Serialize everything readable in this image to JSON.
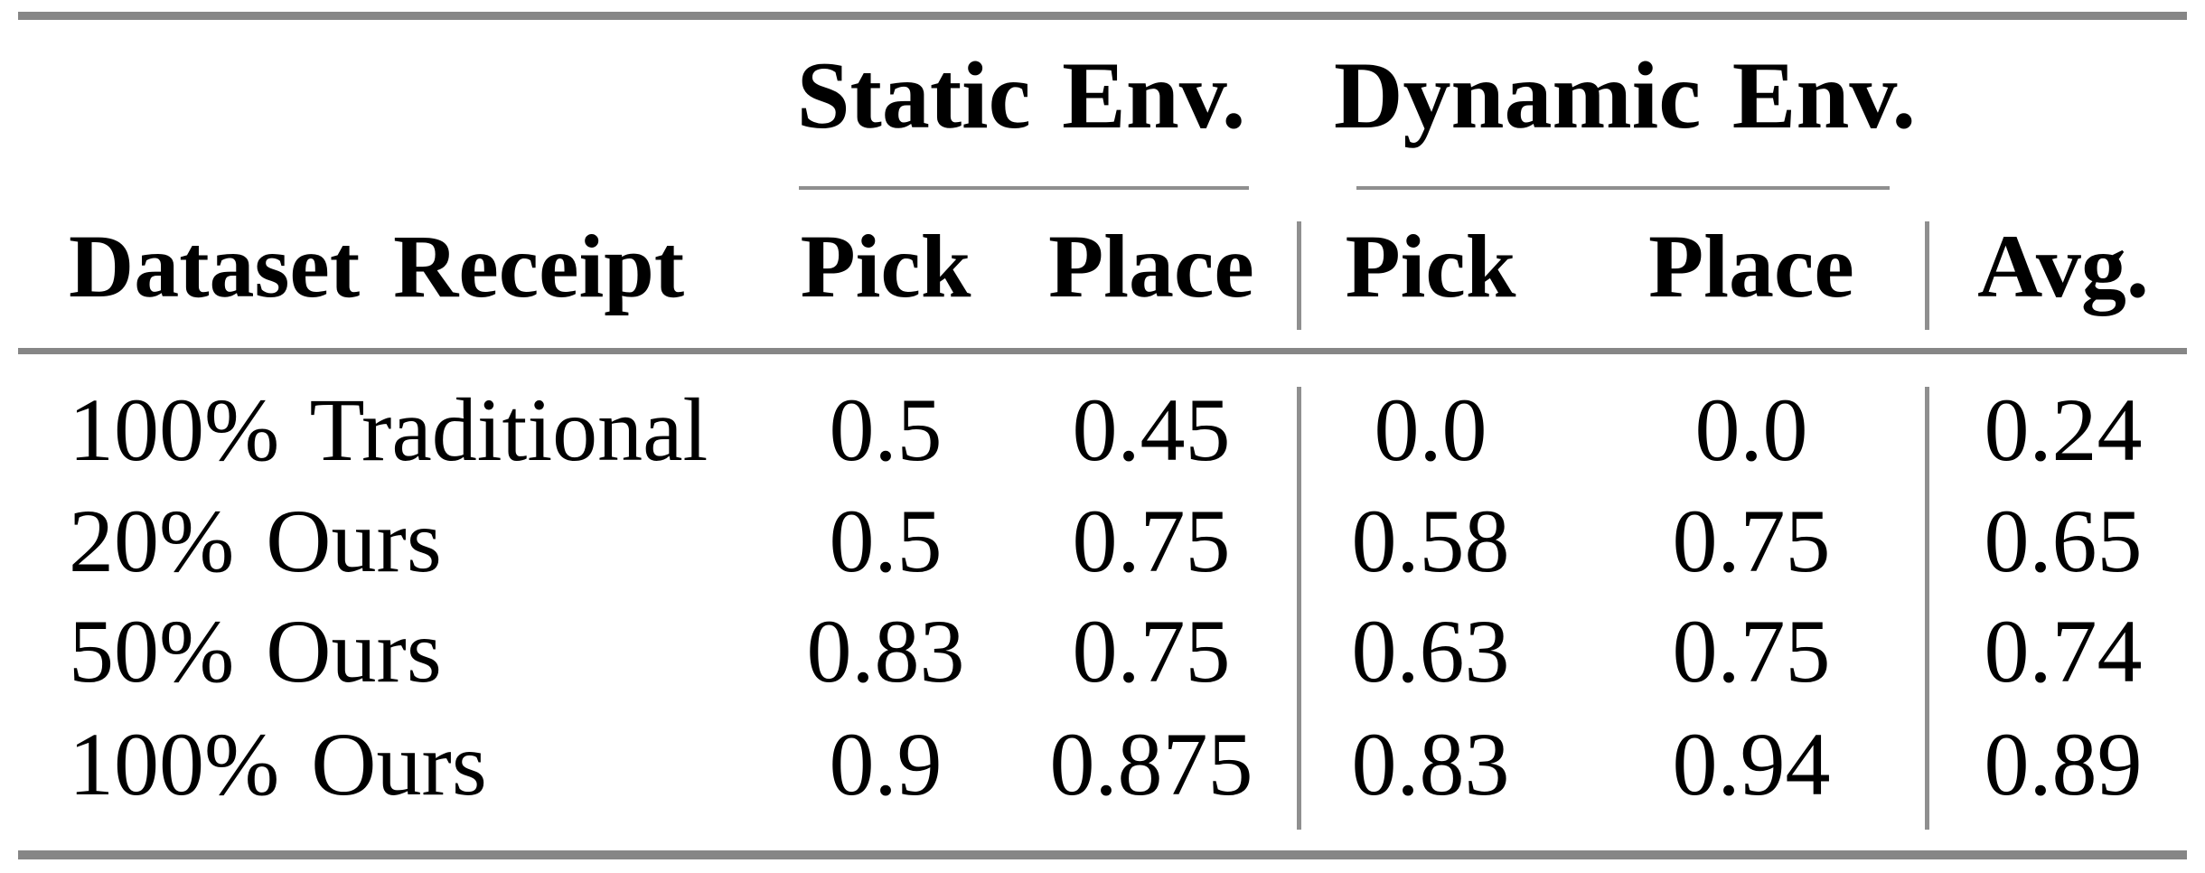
{
  "colors": {
    "background": "#ffffff",
    "text": "#000000",
    "heavy_rule": "#868686",
    "thin_rule": "#8f8f8f"
  },
  "header": {
    "row_label": "Dataset Receipt",
    "groups": [
      {
        "label": "Static Env.",
        "columns": [
          "Pick",
          "Place"
        ]
      },
      {
        "label": "Dynamic Env.",
        "columns": [
          "Pick",
          "Place"
        ]
      }
    ],
    "avg_label": "Avg."
  },
  "rows": [
    {
      "label": "100% Traditional",
      "static_pick": "0.5",
      "static_place": "0.45",
      "dynamic_pick": "0.0",
      "dynamic_place": "0.0",
      "avg": "0.24"
    },
    {
      "label": "20% Ours",
      "static_pick": "0.5",
      "static_place": "0.75",
      "dynamic_pick": "0.58",
      "dynamic_place": "0.75",
      "avg": "0.65"
    },
    {
      "label": "50% Ours",
      "static_pick": "0.83",
      "static_place": "0.75",
      "dynamic_pick": "0.63",
      "dynamic_place": "0.75",
      "avg": "0.74"
    },
    {
      "label": "100% Ours",
      "static_pick": "0.9",
      "static_place": "0.875",
      "dynamic_pick": "0.83",
      "dynamic_place": "0.94",
      "avg": "0.89"
    }
  ]
}
